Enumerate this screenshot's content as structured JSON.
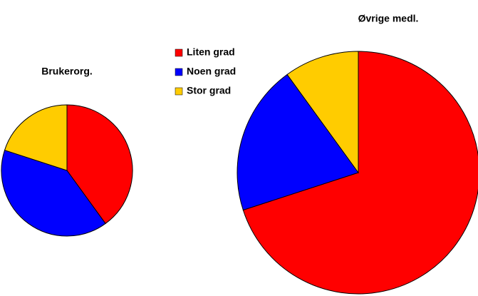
{
  "chart_data": [
    {
      "type": "pie",
      "title": "Brukerorg.",
      "categories": [
        "Liten grad",
        "Noen grad",
        "Stor grad"
      ],
      "values": [
        40,
        40,
        20
      ],
      "colors": [
        "#ff0000",
        "#0000ff",
        "#ffcc00"
      ]
    },
    {
      "type": "pie",
      "title": "Øvrige medl.",
      "categories": [
        "Liten grad",
        "Noen grad",
        "Stor grad"
      ],
      "values": [
        70,
        20,
        10
      ],
      "colors": [
        "#ff0000",
        "#0000ff",
        "#ffcc00"
      ]
    }
  ]
}
